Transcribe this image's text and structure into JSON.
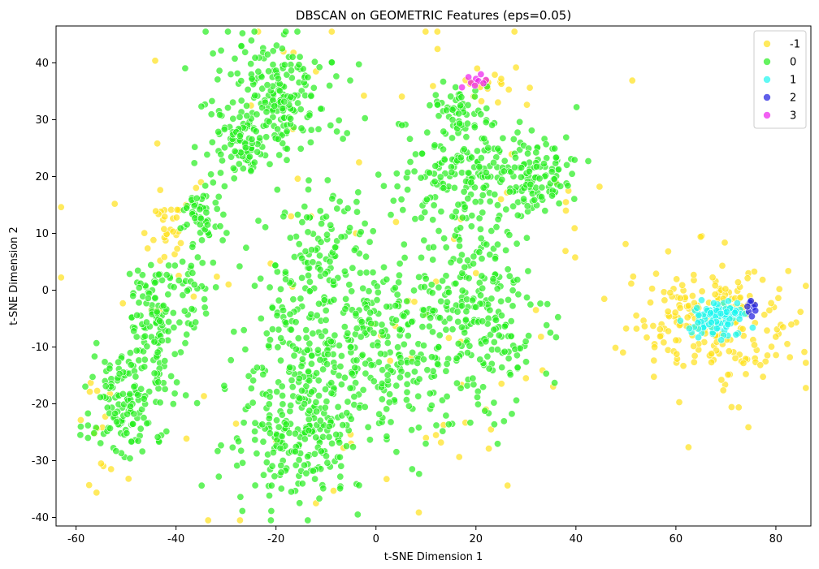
{
  "chart_data": {
    "type": "scatter",
    "title": "DBSCAN on GEOMETRIC Features (eps=0.05)",
    "xlabel": "t-SNE Dimension 1",
    "ylabel": "t-SNE Dimension 2",
    "xlim": [
      -64,
      87
    ],
    "ylim": [
      -41.5,
      46.5
    ],
    "xticks": [
      "-60",
      "-40",
      "-20",
      "0",
      "20",
      "40",
      "60",
      "80"
    ],
    "yticks": [
      "-40",
      "-30",
      "-20",
      "-10",
      "0",
      "10",
      "20",
      "30",
      "40"
    ],
    "grid": false,
    "legend_position": "top-right",
    "point_alpha": 0.7,
    "series": [
      {
        "name": "-1",
        "color": "#ffe119",
        "regions": [
          {
            "cx": 67,
            "cy": -6,
            "sx": 8,
            "sy": 5,
            "n": 220
          },
          {
            "cx": -41,
            "cy": 11,
            "sx": 1.6,
            "sy": 2.6,
            "n": 28
          },
          {
            "cx": 22,
            "cy": 37,
            "sx": 3.5,
            "sy": 2.5,
            "n": 22
          },
          {
            "cx": -56,
            "cy": -23,
            "sx": 1.5,
            "sy": 5,
            "n": 12
          },
          {
            "cx": 0,
            "cy": 0,
            "sx": 30,
            "sy": 25,
            "n": 65
          }
        ],
        "points": [
          [
            -36,
            18
          ],
          [
            -35,
            19
          ],
          [
            -38,
            15
          ],
          [
            -45,
            -3.5
          ],
          [
            -44,
            -3.6
          ],
          [
            -43,
            -3.4
          ],
          [
            -12,
            -37.5
          ],
          [
            -8.5,
            -35.3
          ],
          [
            -13,
            13
          ],
          [
            -17,
            13
          ],
          [
            -4,
            10
          ],
          [
            -29.5,
            1
          ],
          [
            12,
            -25.5
          ],
          [
            13,
            -26.8
          ],
          [
            10,
            -26
          ],
          [
            20,
            3
          ],
          [
            25,
            16
          ],
          [
            38,
            14
          ],
          [
            38,
            15.5
          ],
          [
            38.5,
            17.5
          ],
          [
            36,
            19
          ],
          [
            30,
            -15.5
          ],
          [
            32,
            -3.5
          ],
          [
            33,
            -8.2
          ],
          [
            22,
            -21
          ],
          [
            23,
            -24.5
          ],
          [
            -49.5,
            -33.2
          ],
          [
            -53,
            -31.5
          ],
          [
            -55,
            -30.5
          ],
          [
            -28,
            -23.5
          ],
          [
            -20,
            -26.5
          ],
          [
            7,
            -12
          ],
          [
            1,
            -8
          ],
          [
            -5,
            -27
          ],
          [
            12,
            1.5
          ],
          [
            -25,
            32.5
          ],
          [
            4,
            12
          ],
          [
            17,
            12.5
          ],
          [
            -12,
            38.5
          ],
          [
            -18.5,
            42
          ],
          [
            -16.5,
            41.8
          ]
        ]
      },
      {
        "name": "0",
        "color": "#23ee1c",
        "regions": [
          {
            "cx": -20,
            "cy": 33,
            "sx": 6,
            "sy": 5,
            "n": 220
          },
          {
            "cx": -27,
            "cy": 26,
            "sx": 3,
            "sy": 3,
            "n": 60
          },
          {
            "cx": -34,
            "cy": 13,
            "sx": 2.5,
            "sy": 4,
            "n": 60
          },
          {
            "cx": -44,
            "cy": -5,
            "sx": 3,
            "sy": 6,
            "n": 120
          },
          {
            "cx": -50,
            "cy": -20,
            "sx": 4,
            "sy": 5,
            "n": 140
          },
          {
            "cx": -15,
            "cy": -25,
            "sx": 6,
            "sy": 6,
            "n": 250
          },
          {
            "cx": -9,
            "cy": -9,
            "sx": 9,
            "sy": 7,
            "n": 220
          },
          {
            "cx": -10,
            "cy": 7,
            "sx": 6,
            "sy": 6,
            "n": 120
          },
          {
            "cx": 5,
            "cy": -8,
            "sx": 5,
            "sy": 9,
            "n": 90
          },
          {
            "cx": 20,
            "cy": -5,
            "sx": 7,
            "sy": 9,
            "n": 240
          },
          {
            "cx": 18,
            "cy": 20,
            "sx": 7,
            "sy": 6,
            "n": 220
          },
          {
            "cx": 33,
            "cy": 21,
            "sx": 3,
            "sy": 3.5,
            "n": 80
          },
          {
            "cx": 17,
            "cy": 32,
            "sx": 3,
            "sy": 3,
            "n": 50
          },
          {
            "cx": -37,
            "cy": 1,
            "sx": 2,
            "sy": 3,
            "n": 30
          }
        ],
        "points": []
      },
      {
        "name": "1",
        "color": "#1df7ef",
        "regions": [
          {
            "cx": 68.5,
            "cy": -5,
            "sx": 3.2,
            "sy": 1.5,
            "n": 110
          }
        ],
        "points": []
      },
      {
        "name": "2",
        "color": "#1d1be0",
        "regions": [],
        "points": [
          [
            74.8,
            -2.2
          ],
          [
            75.5,
            -3.0
          ],
          [
            74.6,
            -3.8
          ],
          [
            75.8,
            -2.6
          ],
          [
            75.2,
            -4.6
          ],
          [
            74.3,
            -2.9
          ],
          [
            75.9,
            -3.6
          ],
          [
            75.0,
            -1.9
          ]
        ]
      },
      {
        "name": "3",
        "color": "#ed1dee",
        "regions": [],
        "points": [
          [
            19,
            36.5
          ],
          [
            20,
            37.2
          ],
          [
            21,
            38
          ],
          [
            20.5,
            36.8
          ],
          [
            22,
            37
          ],
          [
            18.5,
            37.5
          ],
          [
            19.8,
            36
          ],
          [
            21.5,
            36.4
          ],
          [
            17.2,
            35.7
          ]
        ]
      }
    ]
  }
}
